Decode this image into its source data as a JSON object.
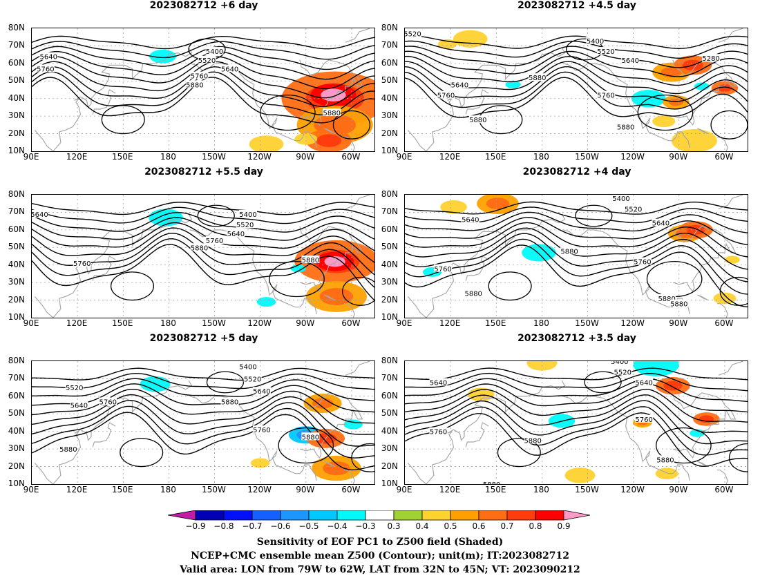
{
  "panels": [
    {
      "title": "2023082712  +6 day",
      "contour_labels": [
        {
          "text": "5400",
          "lon": 210,
          "lat": 67
        },
        {
          "text": "5520",
          "lon": 205,
          "lat": 62
        },
        {
          "text": "5640",
          "lon": 220,
          "lat": 57
        },
        {
          "text": "5760",
          "lon": 200,
          "lat": 53
        },
        {
          "text": "5880",
          "lon": 197,
          "lat": 48
        },
        {
          "text": "5640",
          "lon": 101,
          "lat": 64
        },
        {
          "text": "5760",
          "lon": 99,
          "lat": 57
        },
        {
          "text": "5880",
          "lon": 287,
          "lat": 32
        }
      ],
      "shading": [
        {
          "lon": 289,
          "lat": 40,
          "r": 28,
          "v": 0.6
        },
        {
          "lon": 288,
          "lat": 42,
          "r": 12,
          "v": 0.8
        },
        {
          "lon": 289,
          "lat": 25,
          "r": 20,
          "v": 0.5
        },
        {
          "lon": 285,
          "lat": 16,
          "r": 12,
          "v": 0.6
        },
        {
          "lon": 176,
          "lat": 64,
          "r": 7,
          "v": -0.4
        },
        {
          "lon": 224,
          "lat": 77,
          "r": 7,
          "v": -0.3
        },
        {
          "lon": 244,
          "lat": 14,
          "r": 9,
          "v": 0.4
        },
        {
          "lon": 270,
          "lat": 17,
          "r": 6,
          "v": 0.4
        }
      ]
    },
    {
      "title": "2023082712  +4.5 day",
      "contour_labels": [
        {
          "text": "5520",
          "lon": 95,
          "lat": 77
        },
        {
          "text": "5400",
          "lon": 215,
          "lat": 73
        },
        {
          "text": "5520",
          "lon": 222,
          "lat": 67
        },
        {
          "text": "5640",
          "lon": 238,
          "lat": 62
        },
        {
          "text": "5280",
          "lon": 291,
          "lat": 63
        },
        {
          "text": "5640",
          "lon": 126,
          "lat": 48
        },
        {
          "text": "5880",
          "lon": 177,
          "lat": 52
        },
        {
          "text": "5760",
          "lon": 117,
          "lat": 42
        },
        {
          "text": "5760",
          "lon": 222,
          "lat": 42
        },
        {
          "text": "5880",
          "lon": 138,
          "lat": 28
        },
        {
          "text": "5880",
          "lon": 235,
          "lat": 24
        }
      ],
      "shading": [
        {
          "lon": 133,
          "lat": 74,
          "r": 9,
          "v": 0.4
        },
        {
          "lon": 118,
          "lat": 71,
          "r": 5,
          "v": 0.4
        },
        {
          "lon": 265,
          "lat": 55,
          "r": 10,
          "v": 0.5
        },
        {
          "lon": 279,
          "lat": 59,
          "r": 10,
          "v": 0.6
        },
        {
          "lon": 300,
          "lat": 46,
          "r": 7,
          "v": 0.6
        },
        {
          "lon": 250,
          "lat": 40,
          "r": 9,
          "v": -0.4
        },
        {
          "lon": 268,
          "lat": 38,
          "r": 7,
          "v": 0.5
        },
        {
          "lon": 280,
          "lat": 16,
          "r": 12,
          "v": 0.4
        },
        {
          "lon": 260,
          "lat": 27,
          "r": 6,
          "v": 0.4
        },
        {
          "lon": 285,
          "lat": 47,
          "r": 4,
          "v": -0.4
        },
        {
          "lon": 161,
          "lat": 48,
          "r": 4,
          "v": -0.4
        }
      ]
    },
    {
      "title": "2023082712  +5.5 day",
      "contour_labels": [
        {
          "text": "5640",
          "lon": 95,
          "lat": 69
        },
        {
          "text": "5400",
          "lon": 232,
          "lat": 69
        },
        {
          "text": "5520",
          "lon": 230,
          "lat": 63
        },
        {
          "text": "5640",
          "lon": 224,
          "lat": 58
        },
        {
          "text": "5760",
          "lon": 210,
          "lat": 54
        },
        {
          "text": "5880",
          "lon": 200,
          "lat": 50
        },
        {
          "text": "5760",
          "lon": 123,
          "lat": 41
        },
        {
          "text": "5880",
          "lon": 273,
          "lat": 43
        }
      ],
      "shading": [
        {
          "lon": 290,
          "lat": 42,
          "r": 22,
          "v": 0.6
        },
        {
          "lon": 289,
          "lat": 42,
          "r": 10,
          "v": 0.8
        },
        {
          "lon": 290,
          "lat": 22,
          "r": 16,
          "v": 0.5
        },
        {
          "lon": 178,
          "lat": 67,
          "r": 9,
          "v": -0.4
        },
        {
          "lon": 197,
          "lat": 65,
          "r": 7,
          "v": -0.3
        },
        {
          "lon": 244,
          "lat": 19,
          "r": 5,
          "v": -0.4
        },
        {
          "lon": 265,
          "lat": 38,
          "r": 4,
          "v": -0.4
        }
      ]
    },
    {
      "title": "2023082712  +4 day",
      "contour_labels": [
        {
          "text": "5400",
          "lon": 232,
          "lat": 78
        },
        {
          "text": "5520",
          "lon": 240,
          "lat": 72
        },
        {
          "text": "5640",
          "lon": 133,
          "lat": 66
        },
        {
          "text": "5640",
          "lon": 258,
          "lat": 64
        },
        {
          "text": "5880",
          "lon": 198,
          "lat": 48
        },
        {
          "text": "5760",
          "lon": 115,
          "lat": 38
        },
        {
          "text": "5760",
          "lon": 246,
          "lat": 42
        },
        {
          "text": "5880",
          "lon": 135,
          "lat": 24
        },
        {
          "text": "5880",
          "lon": 262,
          "lat": 21
        },
        {
          "text": "5880",
          "lon": 270,
          "lat": 18
        }
      ],
      "shading": [
        {
          "lon": 151,
          "lat": 75,
          "r": 11,
          "v": 0.5
        },
        {
          "lon": 122,
          "lat": 73,
          "r": 7,
          "v": 0.4
        },
        {
          "lon": 274,
          "lat": 58,
          "r": 9,
          "v": 0.5
        },
        {
          "lon": 281,
          "lat": 60,
          "r": 9,
          "v": 0.6
        },
        {
          "lon": 178,
          "lat": 47,
          "r": 9,
          "v": -0.4
        },
        {
          "lon": 108,
          "lat": 36,
          "r": 5,
          "v": -0.4
        },
        {
          "lon": 248,
          "lat": 73,
          "r": 5,
          "v": -0.3
        },
        {
          "lon": 300,
          "lat": 21,
          "r": 6,
          "v": 0.4
        },
        {
          "lon": 305,
          "lat": 43,
          "r": 4,
          "v": 0.4
        }
      ]
    },
    {
      "title": "2023082712  +5 day",
      "contour_labels": [
        {
          "text": "5400",
          "lon": 232,
          "lat": 77
        },
        {
          "text": "5520",
          "lon": 235,
          "lat": 70
        },
        {
          "text": "5520",
          "lon": 118,
          "lat": 65
        },
        {
          "text": "5640",
          "lon": 241,
          "lat": 63
        },
        {
          "text": "5640",
          "lon": 121,
          "lat": 55
        },
        {
          "text": "5760",
          "lon": 140,
          "lat": 57
        },
        {
          "text": "5880",
          "lon": 220,
          "lat": 57
        },
        {
          "text": "5760",
          "lon": 241,
          "lat": 41
        },
        {
          "text": "5880",
          "lon": 273,
          "lat": 37
        },
        {
          "text": "5880",
          "lon": 114,
          "lat": 30
        }
      ],
      "shading": [
        {
          "lon": 270,
          "lat": 38,
          "r": 9,
          "v": -0.5
        },
        {
          "lon": 283,
          "lat": 36,
          "r": 10,
          "v": 0.6
        },
        {
          "lon": 281,
          "lat": 56,
          "r": 10,
          "v": 0.5
        },
        {
          "lon": 290,
          "lat": 19,
          "r": 13,
          "v": 0.5
        },
        {
          "lon": 171,
          "lat": 67,
          "r": 8,
          "v": -0.4
        },
        {
          "lon": 195,
          "lat": 63,
          "r": 6,
          "v": -0.3
        },
        {
          "lon": 301,
          "lat": 44,
          "r": 5,
          "v": -0.4
        },
        {
          "lon": 240,
          "lat": 22,
          "r": 5,
          "v": 0.4
        }
      ]
    },
    {
      "title": "2023082712  +3.5 day",
      "contour_labels": [
        {
          "text": "5400",
          "lon": 231,
          "lat": 80
        },
        {
          "text": "5520",
          "lon": 233,
          "lat": 74
        },
        {
          "text": "5640",
          "lon": 112,
          "lat": 68
        },
        {
          "text": "5640",
          "lon": 247,
          "lat": 68
        },
        {
          "text": "5760",
          "lon": 247,
          "lat": 47
        },
        {
          "text": "5760",
          "lon": 112,
          "lat": 40
        },
        {
          "text": "5880",
          "lon": 174,
          "lat": 35
        },
        {
          "text": "5880",
          "lon": 261,
          "lat": 24
        },
        {
          "text": "5880",
          "lon": 147,
          "lat": 10
        }
      ],
      "shading": [
        {
          "lon": 255,
          "lat": 78,
          "r": 12,
          "v": -0.4
        },
        {
          "lon": 300,
          "lat": 75,
          "r": 6,
          "v": -0.3
        },
        {
          "lon": 266,
          "lat": 66,
          "r": 9,
          "v": 0.6
        },
        {
          "lon": 288,
          "lat": 47,
          "r": 7,
          "v": 0.6
        },
        {
          "lon": 193,
          "lat": 46,
          "r": 7,
          "v": -0.4
        },
        {
          "lon": 246,
          "lat": 45,
          "r": 5,
          "v": 0.5
        },
        {
          "lon": 180,
          "lat": 79,
          "r": 8,
          "v": 0.4
        },
        {
          "lon": 140,
          "lat": 61,
          "r": 7,
          "v": 0.4
        },
        {
          "lon": 205,
          "lat": 15,
          "r": 8,
          "v": 0.4
        },
        {
          "lon": 262,
          "lat": 16,
          "r": 6,
          "v": 0.4
        },
        {
          "lon": 282,
          "lat": 39,
          "r": 4,
          "v": -0.4
        }
      ]
    }
  ],
  "lat_ticks": [
    "80N",
    "70N",
    "60N",
    "50N",
    "40N",
    "30N",
    "20N",
    "10N"
  ],
  "lon_ticks": [
    "90E",
    "120E",
    "150E",
    "180",
    "150W",
    "120W",
    "90W",
    "60W"
  ],
  "colorbar": {
    "colors": [
      "#c21ba8",
      "#0000b4",
      "#0010fa",
      "#1660ff",
      "#1e96ff",
      "#00c8ff",
      "#00fafa",
      "#ffffff",
      "#a0d234",
      "#ffd230",
      "#ffa000",
      "#ff6e14",
      "#ff3c0e",
      "#ff0000",
      "#ff9ac8"
    ],
    "labels": [
      "−0.9",
      "−0.8",
      "−0.7",
      "−0.6",
      "−0.5",
      "−0.4",
      "−0.3",
      "0.3",
      "0.4",
      "0.5",
      "0.6",
      "0.7",
      "0.8",
      "0.9"
    ]
  },
  "caption": [
    "Sensitivity of EOF PC1 to Z500 field (Shaded)",
    "NCEP+CMC ensemble mean Z500 (Contour); unit(m); IT:2023082712",
    "Valid area: LON from 79W to 62W, LAT from 32N to 45N; VT: 2023090212"
  ],
  "colors": {
    "contour": "#000000",
    "coast": "#a8a8a8",
    "grid": "#a0a0a0"
  }
}
